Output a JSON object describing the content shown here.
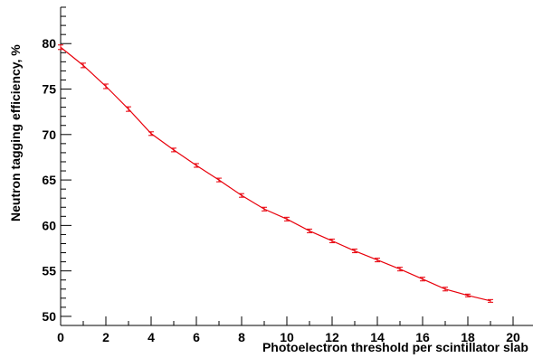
{
  "chart_data": {
    "type": "line",
    "xlabel": "Photoelectron threshold per scintillator slab",
    "ylabel": "Neutron tagging efficiency, %",
    "xlim": [
      0,
      21
    ],
    "ylim": [
      49,
      84
    ],
    "x_major_ticks": [
      0,
      2,
      4,
      6,
      8,
      10,
      12,
      14,
      16,
      18,
      20
    ],
    "y_major_ticks": [
      50,
      55,
      60,
      65,
      70,
      75,
      80
    ],
    "grid": false,
    "series": [
      {
        "color": "#e8000b",
        "x": [
          0,
          1,
          2,
          3,
          4,
          5,
          6,
          7,
          8,
          9,
          10,
          11,
          12,
          13,
          14,
          15,
          16,
          17,
          18,
          19
        ],
        "y": [
          79.6,
          77.6,
          75.3,
          72.8,
          70.1,
          68.3,
          66.6,
          65.0,
          63.3,
          61.8,
          60.7,
          59.4,
          58.3,
          57.2,
          56.2,
          55.2,
          54.1,
          53.0,
          52.3,
          51.7
        ],
        "yerr": [
          0.25,
          0.25,
          0.25,
          0.25,
          0.2,
          0.2,
          0.2,
          0.2,
          0.2,
          0.2,
          0.2,
          0.2,
          0.2,
          0.2,
          0.2,
          0.2,
          0.2,
          0.2,
          0.15,
          0.15
        ]
      }
    ]
  }
}
